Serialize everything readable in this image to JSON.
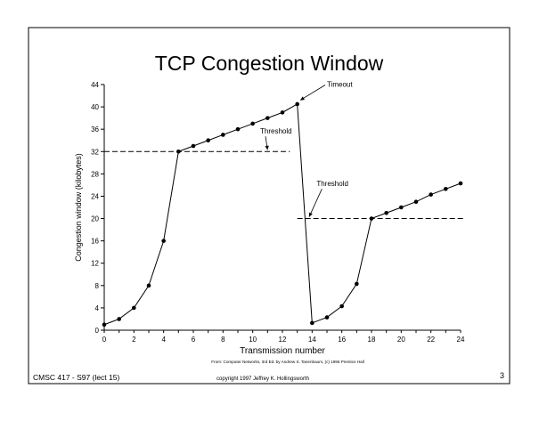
{
  "slide": {
    "title": "TCP Congestion Window",
    "source": "From: Computer Networks, 3rd Ed. by Andrew S. Tanenbaum, (c) 1996 Prentice Hall",
    "footer_left": "CMSC 417 - S97  (lect 15)",
    "footer_center": "copyright 1997  Jeffrey K. Hollingsworth",
    "page_number": "3"
  },
  "chart_data": {
    "type": "line",
    "xlabel": "Transmission number",
    "ylabel": "Congestion window (kilobytes)",
    "xlim": [
      0,
      24
    ],
    "ylim": [
      0,
      44
    ],
    "xticks": [
      0,
      2,
      4,
      6,
      8,
      10,
      12,
      14,
      16,
      18,
      20,
      22,
      24
    ],
    "yticks": [
      0,
      4,
      8,
      12,
      16,
      20,
      24,
      28,
      32,
      36,
      40,
      44
    ],
    "grid": false,
    "series": [
      {
        "x": [
          0,
          1,
          2,
          3,
          4,
          5,
          6,
          7,
          8,
          9,
          10,
          11,
          12,
          13,
          14,
          15,
          16,
          17,
          18,
          19,
          20,
          21,
          22,
          23,
          24
        ],
        "y": [
          1,
          2,
          4,
          8,
          16,
          32,
          33,
          34,
          35,
          36,
          37,
          38,
          39,
          40.5,
          1.3,
          2.3,
          4.3,
          8.3,
          20,
          21,
          22,
          23,
          24.3,
          25.3,
          26.3
        ]
      }
    ],
    "thresholds": [
      {
        "label": "Threshold",
        "y": 32,
        "x_start": 0,
        "x_end": 12.5,
        "label_x": 10.5,
        "label_y": 35.2,
        "arrow_to_x": 11,
        "arrow_to_y": 32.3
      },
      {
        "label": "Threshold",
        "y": 20,
        "x_start": 13,
        "x_end": 24.3,
        "label_x": 14.3,
        "label_y": 25.8,
        "arrow_to_x": 13.8,
        "arrow_to_y": 20.3
      }
    ],
    "annotations": [
      {
        "label": "Timeout",
        "label_x": 15,
        "label_y": 43.6,
        "arrow_to_x": 13.2,
        "arrow_to_y": 41.2
      }
    ]
  }
}
